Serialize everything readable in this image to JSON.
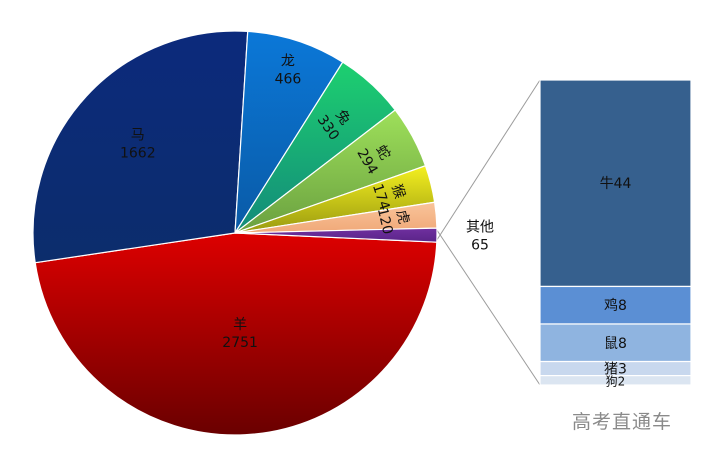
{
  "chart_data": {
    "type": "bar-of-pie",
    "pie": {
      "slices": [
        {
          "label": "羊",
          "value": 2751,
          "color": "#dd0000",
          "color_dark": "#6a0000"
        },
        {
          "label": "马",
          "value": 1662,
          "color": "#0c2a7c",
          "color_dark": "#0c2d6c"
        },
        {
          "label": "龙",
          "value": 466,
          "color": "#0b78d8",
          "color_dark": "#0a5aa6"
        },
        {
          "label": "兔",
          "value": 330,
          "color": "#1dd070",
          "color_dark": "#138a7a"
        },
        {
          "label": "蛇",
          "value": 294,
          "color": "#9ee05a",
          "color_dark": "#6aa040"
        },
        {
          "label": "猴",
          "value": 174,
          "color": "#f4f020",
          "color_dark": "#9a9a10"
        },
        {
          "label": "虎",
          "value": 120,
          "color": "#f9c49a",
          "color_dark": "#f0a878"
        },
        {
          "label": "其他",
          "value": 65,
          "color": "#7030a0",
          "color_dark": "#5a2488"
        }
      ]
    },
    "bar": {
      "items": [
        {
          "label": "牛",
          "value": 44,
          "color": "#36608e"
        },
        {
          "label": "鸡",
          "value": 8,
          "color": "#5b8fd4"
        },
        {
          "label": "鼠",
          "value": 8,
          "color": "#8fb4e0"
        },
        {
          "label": "猪",
          "value": 3,
          "color": "#c8d8ee"
        },
        {
          "label": "狗",
          "value": 2,
          "color": "#dbe5f1"
        }
      ]
    }
  },
  "watermark": "高考直通车"
}
